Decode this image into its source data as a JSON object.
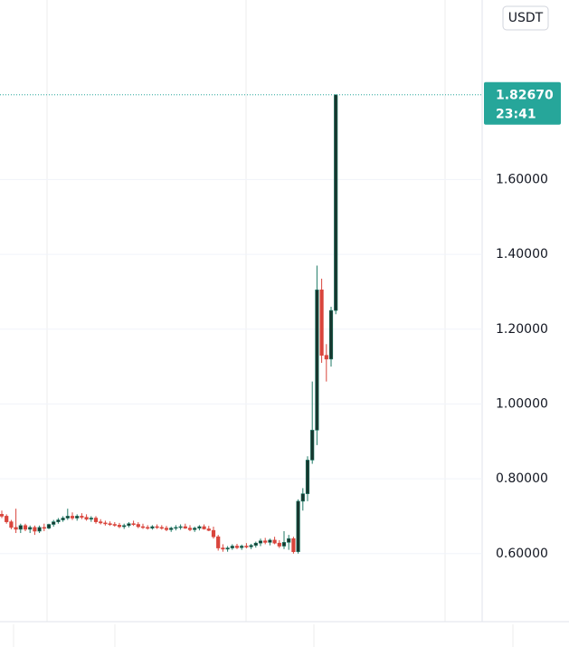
{
  "chart_data": {
    "type": "candlestick",
    "currency_button": "USDT",
    "up_color": "#1f7a66",
    "down_color": "#d9453c",
    "ylim": [
      0.418,
      2.08
    ],
    "yticks": [
      {
        "value": 0.6,
        "label": "0.60000"
      },
      {
        "value": 0.8,
        "label": "0.80000"
      },
      {
        "value": 1.0,
        "label": "1.00000"
      },
      {
        "value": 1.2,
        "label": "1.20000"
      },
      {
        "value": 1.4,
        "label": "1.40000"
      },
      {
        "value": 1.6,
        "label": "1.60000"
      }
    ],
    "grid": true,
    "last_price": {
      "value": 1.8267,
      "label": "1.82670"
    },
    "countdown": "23:41",
    "candles": [
      [
        0.705,
        0.715,
        0.695,
        0.7
      ],
      [
        0.7,
        0.705,
        0.68,
        0.685
      ],
      [
        0.685,
        0.69,
        0.665,
        0.67
      ],
      [
        0.67,
        0.72,
        0.655,
        0.665
      ],
      [
        0.665,
        0.68,
        0.655,
        0.675
      ],
      [
        0.675,
        0.68,
        0.66,
        0.665
      ],
      [
        0.665,
        0.675,
        0.655,
        0.67
      ],
      [
        0.67,
        0.675,
        0.65,
        0.66
      ],
      [
        0.66,
        0.675,
        0.655,
        0.67
      ],
      [
        0.67,
        0.68,
        0.66,
        0.668
      ],
      [
        0.668,
        0.68,
        0.665,
        0.678
      ],
      [
        0.678,
        0.69,
        0.672,
        0.685
      ],
      [
        0.685,
        0.695,
        0.68,
        0.69
      ],
      [
        0.69,
        0.7,
        0.685,
        0.695
      ],
      [
        0.695,
        0.72,
        0.69,
        0.7
      ],
      [
        0.7,
        0.71,
        0.69,
        0.695
      ],
      [
        0.695,
        0.705,
        0.688,
        0.7
      ],
      [
        0.7,
        0.708,
        0.692,
        0.697
      ],
      [
        0.697,
        0.705,
        0.688,
        0.692
      ],
      [
        0.692,
        0.7,
        0.685,
        0.695
      ],
      [
        0.695,
        0.7,
        0.68,
        0.685
      ],
      [
        0.685,
        0.692,
        0.678,
        0.682
      ],
      [
        0.682,
        0.688,
        0.675,
        0.68
      ],
      [
        0.68,
        0.686,
        0.674,
        0.678
      ],
      [
        0.678,
        0.684,
        0.672,
        0.676
      ],
      [
        0.676,
        0.682,
        0.668,
        0.672
      ],
      [
        0.672,
        0.68,
        0.666,
        0.675
      ],
      [
        0.675,
        0.684,
        0.67,
        0.68
      ],
      [
        0.68,
        0.688,
        0.674,
        0.678
      ],
      [
        0.678,
        0.684,
        0.668,
        0.672
      ],
      [
        0.672,
        0.68,
        0.666,
        0.67
      ],
      [
        0.67,
        0.676,
        0.664,
        0.668
      ],
      [
        0.668,
        0.676,
        0.664,
        0.672
      ],
      [
        0.672,
        0.678,
        0.666,
        0.67
      ],
      [
        0.67,
        0.676,
        0.664,
        0.668
      ],
      [
        0.668,
        0.674,
        0.66,
        0.664
      ],
      [
        0.664,
        0.672,
        0.658,
        0.668
      ],
      [
        0.668,
        0.676,
        0.662,
        0.67
      ],
      [
        0.67,
        0.678,
        0.664,
        0.672
      ],
      [
        0.672,
        0.68,
        0.666,
        0.668
      ],
      [
        0.668,
        0.676,
        0.66,
        0.664
      ],
      [
        0.664,
        0.672,
        0.658,
        0.668
      ],
      [
        0.668,
        0.676,
        0.662,
        0.672
      ],
      [
        0.672,
        0.678,
        0.664,
        0.666
      ],
      [
        0.666,
        0.674,
        0.66,
        0.662
      ],
      [
        0.662,
        0.672,
        0.64,
        0.645
      ],
      [
        0.645,
        0.65,
        0.608,
        0.615
      ],
      [
        0.615,
        0.625,
        0.605,
        0.612
      ],
      [
        0.612,
        0.62,
        0.605,
        0.615
      ],
      [
        0.615,
        0.625,
        0.61,
        0.62
      ],
      [
        0.62,
        0.626,
        0.612,
        0.616
      ],
      [
        0.616,
        0.624,
        0.61,
        0.62
      ],
      [
        0.62,
        0.628,
        0.614,
        0.618
      ],
      [
        0.618,
        0.626,
        0.612,
        0.622
      ],
      [
        0.622,
        0.632,
        0.616,
        0.628
      ],
      [
        0.628,
        0.64,
        0.62,
        0.634
      ],
      [
        0.634,
        0.642,
        0.625,
        0.63
      ],
      [
        0.63,
        0.64,
        0.622,
        0.636
      ],
      [
        0.636,
        0.645,
        0.625,
        0.628
      ],
      [
        0.628,
        0.636,
        0.615,
        0.62
      ],
      [
        0.62,
        0.66,
        0.612,
        0.63
      ],
      [
        0.63,
        0.65,
        0.61,
        0.64
      ],
      [
        0.64,
        0.645,
        0.6,
        0.605
      ],
      [
        0.605,
        0.745,
        0.6,
        0.74
      ],
      [
        0.74,
        0.775,
        0.715,
        0.76
      ],
      [
        0.76,
        0.86,
        0.74,
        0.85
      ],
      [
        0.85,
        1.06,
        0.84,
        0.93
      ],
      [
        0.93,
        1.37,
        0.89,
        1.305
      ],
      [
        1.305,
        1.335,
        1.11,
        1.13
      ],
      [
        1.13,
        1.16,
        1.06,
        1.12
      ],
      [
        1.12,
        1.26,
        1.1,
        1.25
      ],
      [
        1.25,
        1.8267,
        1.24,
        1.8267
      ]
    ]
  }
}
